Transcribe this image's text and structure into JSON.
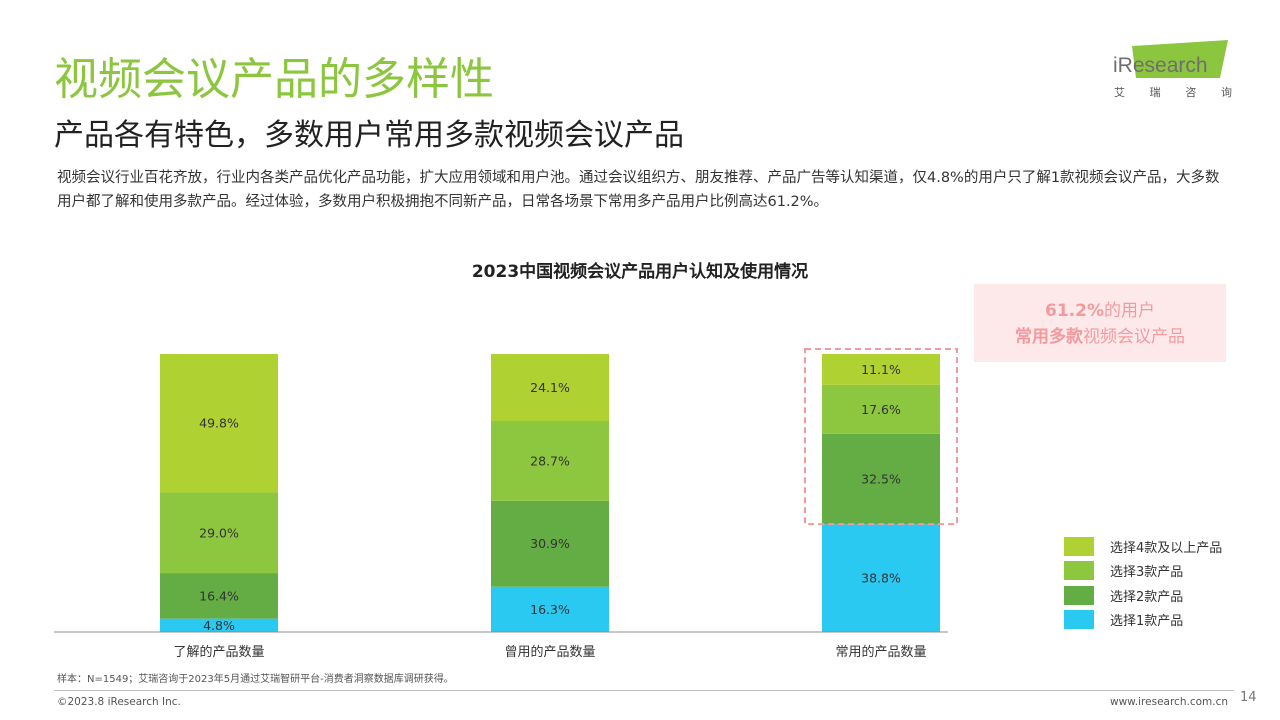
{
  "header": {
    "title": "视频会议产品的多样性",
    "subtitle": "产品各有特色，多数用户常用多款视频会议产品",
    "description": "视频会议行业百花齐放，行业内各类产品优化产品功能，扩大应用领域和用户池。通过会议组织方、朋友推荐、产品广告等认知渠道，仅4.8%的用户只了解1款视频会议产品，大多数用户都了解和使用多款产品。经过体验，多数用户积极拥抱不同新产品，日常各场景下常用多产品用户比例高达61.2%。"
  },
  "logo": {
    "text": "iResearch",
    "cn_chars": [
      "艾",
      "瑞",
      "咨",
      "询"
    ],
    "colors": {
      "green": "#8cc63e"
    }
  },
  "callout": {
    "line1_highlight": "61.2%",
    "line1_rest": "的用户",
    "line2_highlight": "常用多款",
    "line2_rest": "视频会议产品"
  },
  "chart_data": {
    "type": "bar",
    "stacked": true,
    "title": "2023中国视频会议产品用户认知及使用情况",
    "categories": [
      "了解的产品数量",
      "曾用的产品数量",
      "常用的产品数量"
    ],
    "series": [
      {
        "name": "选择1款产品",
        "color": "#29c9f2",
        "values": [
          4.8,
          16.3,
          38.8
        ]
      },
      {
        "name": "选择2款产品",
        "color": "#63ad44",
        "values": [
          16.4,
          30.9,
          32.5
        ]
      },
      {
        "name": "选择3款产品",
        "color": "#8dc63f",
        "values": [
          29.0,
          28.7,
          17.6
        ]
      },
      {
        "name": "选择4款及以上产品",
        "color": "#b0d132",
        "values": [
          49.8,
          24.1,
          11.1
        ]
      }
    ],
    "ylim": [
      0,
      100
    ],
    "highlight_category": "常用的产品数量",
    "highlight_color": "#f29b9f",
    "grid": false,
    "legend_position": "right-bottom"
  },
  "footer": {
    "footnote": "样本：N=1549；艾瑞咨询于2023年5月通过艾瑞智研平台-消费者洞察数据库调研获得。",
    "copyright": "©2023.8 iResearch Inc.",
    "website": "www.iresearch.com.cn",
    "page_number": "14"
  }
}
